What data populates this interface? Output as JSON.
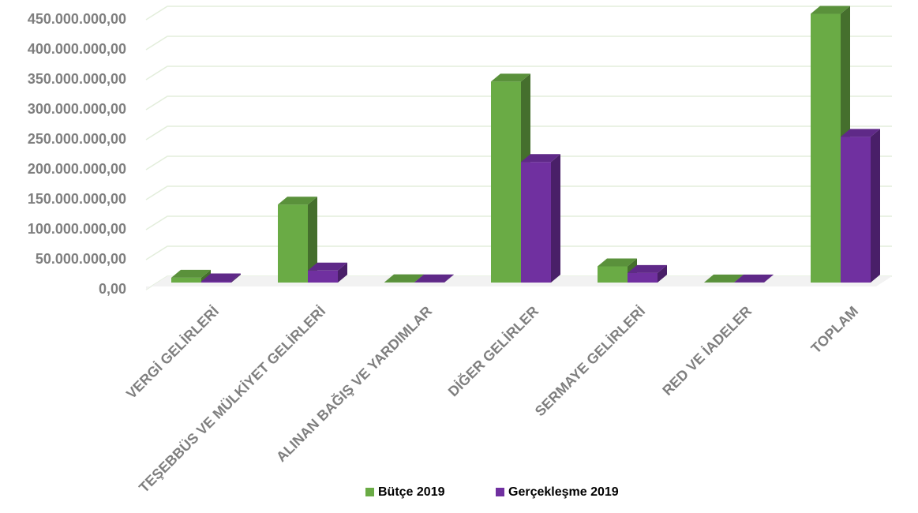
{
  "chart_data": {
    "type": "bar3d",
    "categories": [
      "VERGİ GELİRLERİ",
      "TEŞEBBÜS VE MÜLKİYET GELİRLERİ",
      "ALINAN BAĞIŞ VE YARDIMLAR",
      "DİĞER GELİRLER",
      "SERMAYE GELİRLERİ",
      "RED VE İADELER",
      "TOPLAM"
    ],
    "series": [
      {
        "name": "Bütçe 2019",
        "color": "#6aab45",
        "values": [
          8000000,
          130000000,
          500000,
          335000000,
          27000000,
          200000,
          448000000
        ]
      },
      {
        "name": "Gerçekleşme 2019",
        "color": "#7030a0",
        "values": [
          2000000,
          20000000,
          300000,
          201000000,
          16000000,
          100000,
          243000000
        ]
      }
    ],
    "ylim": [
      0,
      450000000
    ],
    "yticks": [
      {
        "value": 0,
        "label": "0,00"
      },
      {
        "value": 50000000,
        "label": "50.000.000,00"
      },
      {
        "value": 100000000,
        "label": "100.000.000,00"
      },
      {
        "value": 150000000,
        "label": "150.000.000,00"
      },
      {
        "value": 200000000,
        "label": "200.000.000,00"
      },
      {
        "value": 250000000,
        "label": "250.000.000,00"
      },
      {
        "value": 300000000,
        "label": "300.000.000,00"
      },
      {
        "value": 350000000,
        "label": "350.000.000,00"
      },
      {
        "value": 400000000,
        "label": "400.000.000,00"
      },
      {
        "value": 450000000,
        "label": "450.000.000,00"
      }
    ],
    "grid": true,
    "legend": "bottom"
  }
}
